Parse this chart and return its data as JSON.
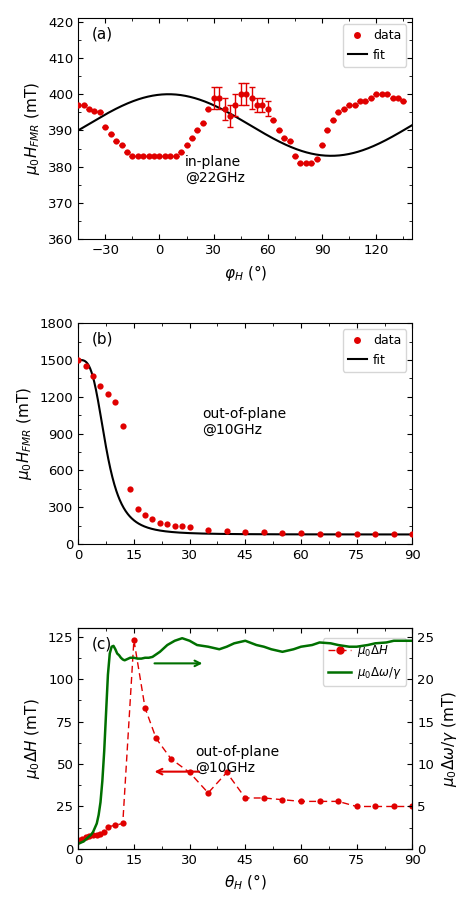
{
  "panel_a": {
    "label": "(a)",
    "annotation": "in-plane\n@22GHz",
    "xlim": [
      -45,
      140
    ],
    "ylim": [
      360,
      421
    ],
    "xticks": [
      -30,
      0,
      30,
      60,
      90,
      120
    ],
    "yticks": [
      360,
      370,
      380,
      390,
      400,
      410,
      420
    ],
    "data_x": [
      -45,
      -42,
      -39,
      -36,
      -33,
      -30,
      -27,
      -24,
      -21,
      -18,
      -15,
      -12,
      -9,
      -6,
      -3,
      0,
      3,
      6,
      9,
      12,
      15,
      18,
      21,
      24,
      27,
      30,
      33,
      36,
      39,
      42,
      45,
      48,
      51,
      54,
      57,
      60,
      63,
      66,
      69,
      72,
      75,
      78,
      81,
      84,
      87,
      90,
      93,
      96,
      99,
      102,
      105,
      108,
      111,
      114,
      117,
      120,
      123,
      126,
      129,
      132,
      135
    ],
    "data_y": [
      397,
      397,
      396,
      395.5,
      395,
      391,
      389,
      387,
      386,
      384,
      383,
      383,
      383,
      383,
      383,
      383,
      383,
      383,
      383,
      384,
      386,
      388,
      390,
      392,
      396,
      399,
      399,
      396,
      394,
      397,
      400,
      400,
      399,
      397,
      397,
      396,
      393,
      390,
      388,
      387,
      383,
      381,
      381,
      381,
      382,
      386,
      390,
      393,
      395,
      396,
      397,
      397,
      398,
      398,
      399,
      400,
      400,
      400,
      399,
      399,
      398
    ],
    "data_yerr": [
      0,
      0,
      0,
      0,
      0,
      0,
      0,
      0,
      0,
      0,
      0,
      0,
      0,
      0,
      0,
      0,
      0,
      0,
      0,
      0,
      0,
      0,
      0,
      0,
      0,
      3,
      3,
      3,
      3,
      3,
      3,
      3,
      3,
      2,
      2,
      2,
      0,
      0,
      0,
      0,
      0,
      0,
      0,
      0,
      0,
      0,
      0,
      0,
      0,
      0,
      0,
      0,
      0,
      0,
      0,
      0,
      0,
      0,
      0,
      0,
      0
    ],
    "fit_A": 8.5,
    "fit_mean": 391.5,
    "fit_phase_deg": 5.0,
    "fit_period_deg": 90.0
  },
  "panel_b": {
    "label": "(b)",
    "annotation": "out-of-plane\n@10GHz",
    "xlim": [
      0,
      90
    ],
    "ylim": [
      0,
      1800
    ],
    "xticks": [
      0,
      15,
      30,
      45,
      60,
      75,
      90
    ],
    "yticks": [
      0,
      300,
      600,
      900,
      1200,
      1500,
      1800
    ],
    "data_x": [
      0,
      2,
      4,
      6,
      8,
      10,
      12,
      14,
      16,
      18,
      20,
      22,
      24,
      26,
      28,
      30,
      35,
      40,
      45,
      50,
      55,
      60,
      65,
      70,
      75,
      80,
      85,
      90
    ],
    "data_y": [
      1500,
      1450,
      1370,
      1290,
      1220,
      1160,
      960,
      450,
      285,
      235,
      200,
      175,
      160,
      150,
      143,
      135,
      115,
      105,
      100,
      95,
      90,
      88,
      85,
      82,
      80,
      80,
      78,
      78
    ]
  },
  "panel_c": {
    "label": "(c)",
    "xlabel": "$\\theta_H$ (°)",
    "ylabel_left": "$\\mu_0 \\Delta H$ (mT)",
    "ylabel_right": "$\\mu_0 \\Delta\\omega/\\gamma$ (mT)",
    "annotation": "out-of-plane\n@10GHz",
    "xlim": [
      0,
      90
    ],
    "ylim_left": [
      0,
      130
    ],
    "ylim_right": [
      0,
      26
    ],
    "xticks": [
      0,
      15,
      30,
      45,
      60,
      75,
      90
    ],
    "yticks_left": [
      0,
      25,
      50,
      75,
      100,
      125
    ],
    "yticks_right": [
      0,
      5,
      10,
      15,
      20,
      25
    ],
    "red_x": [
      0,
      1,
      2,
      3,
      4,
      5,
      6,
      7,
      8,
      10,
      12,
      15,
      18,
      21,
      25,
      30,
      35,
      40,
      45,
      50,
      55,
      60,
      65,
      70,
      75,
      80,
      85,
      90
    ],
    "red_y": [
      5,
      6,
      7,
      7.5,
      8,
      8.5,
      9,
      10,
      13,
      14,
      15,
      123,
      83,
      65,
      53,
      45,
      33,
      45,
      30,
      30,
      29,
      28,
      28,
      28,
      25,
      25,
      25,
      25
    ],
    "green_x": [
      0,
      0.5,
      1,
      1.5,
      2,
      2.5,
      3,
      3.5,
      4,
      4.5,
      5,
      5.5,
      6,
      6.5,
      7,
      7.5,
      8,
      8.5,
      9,
      9.5,
      10,
      10.5,
      11,
      11.5,
      12,
      12.5,
      13,
      13.5,
      14,
      14.5,
      15,
      16,
      17,
      18,
      19,
      20,
      22,
      24,
      26,
      28,
      30,
      32,
      35,
      38,
      40,
      42,
      45,
      48,
      50,
      52,
      55,
      58,
      60,
      63,
      65,
      68,
      70,
      73,
      75,
      78,
      80,
      83,
      85,
      88,
      90
    ],
    "green_y": [
      0.6,
      0.7,
      0.8,
      0.9,
      1.1,
      1.3,
      1.5,
      1.7,
      2.0,
      2.5,
      3.0,
      4.0,
      5.5,
      8.0,
      11.5,
      16.0,
      20.5,
      23.0,
      23.8,
      23.9,
      23.5,
      23.0,
      22.8,
      22.5,
      22.3,
      22.2,
      22.3,
      22.4,
      22.5,
      22.5,
      22.5,
      22.4,
      22.4,
      22.5,
      22.5,
      22.6,
      23.2,
      24.0,
      24.5,
      24.8,
      24.5,
      24.0,
      23.8,
      23.5,
      23.8,
      24.2,
      24.5,
      24.0,
      23.8,
      23.5,
      23.2,
      23.5,
      23.8,
      24.0,
      24.3,
      24.2,
      24.0,
      23.8,
      23.8,
      24.0,
      24.2,
      24.3,
      24.5,
      24.5,
      24.5
    ]
  },
  "dot_color": "#e00000",
  "fit_color": "#000000",
  "green_color": "#007000"
}
